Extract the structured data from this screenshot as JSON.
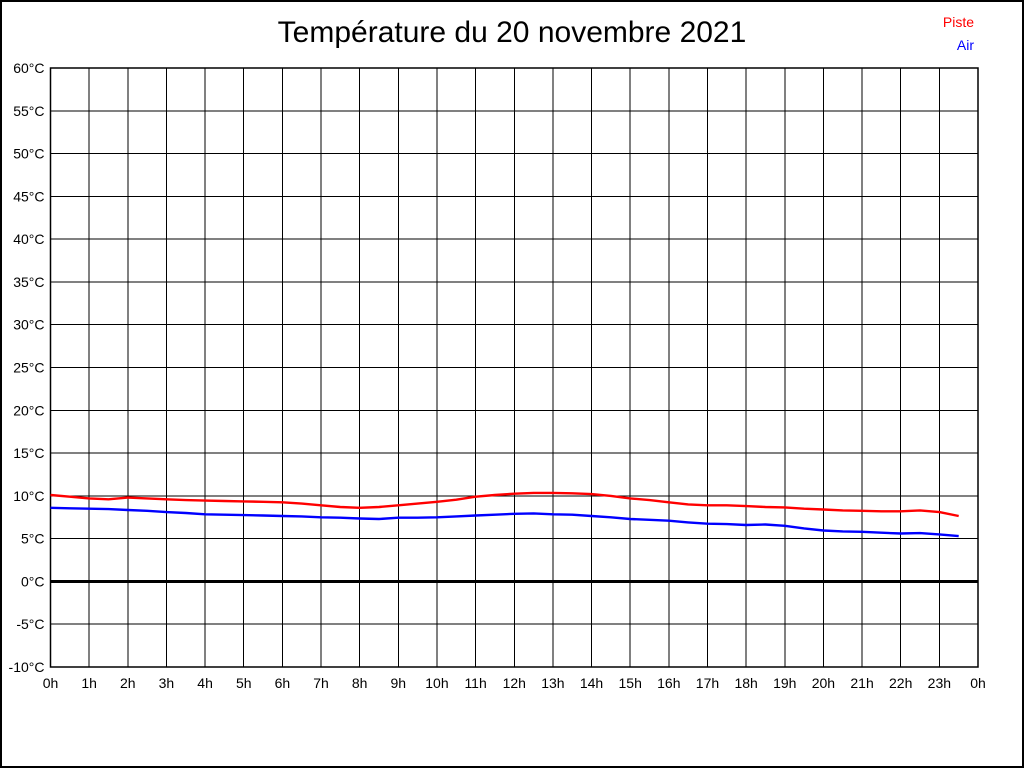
{
  "title": "Température du 20 novembre 2021",
  "legend": [
    {
      "label": "Piste",
      "color": "#ff0000"
    },
    {
      "label": "Air",
      "color": "#0000ff"
    }
  ],
  "colors": {
    "grid": "#000000",
    "background": "#ffffff",
    "piste_line": "#ff0000",
    "air_line": "#0000ff"
  },
  "chart_data": {
    "type": "line",
    "title": "Température du 20 novembre 2021",
    "xlabel": "",
    "ylabel": "",
    "xlim": [
      0,
      24
    ],
    "ylim": [
      -10,
      60
    ],
    "grid": true,
    "legend_position": "top-right",
    "x_ticks": [
      0,
      1,
      2,
      3,
      4,
      5,
      6,
      7,
      8,
      9,
      10,
      11,
      12,
      13,
      14,
      15,
      16,
      17,
      18,
      19,
      20,
      21,
      22,
      23,
      24
    ],
    "x_tick_labels": [
      "0h",
      "1h",
      "2h",
      "3h",
      "4h",
      "5h",
      "6h",
      "7h",
      "8h",
      "9h",
      "10h",
      "11h",
      "12h",
      "13h",
      "14h",
      "15h",
      "16h",
      "17h",
      "18h",
      "19h",
      "20h",
      "21h",
      "22h",
      "23h",
      "0h"
    ],
    "y_ticks": [
      60,
      55,
      50,
      45,
      40,
      35,
      30,
      25,
      20,
      15,
      10,
      5,
      0,
      -5,
      -10
    ],
    "y_tick_labels": [
      "60°C",
      "55°C",
      "50°C",
      "45°C",
      "40°C",
      "35°C",
      "30°C",
      "25°C",
      "20°C",
      "15°C",
      "10°C",
      "5°C",
      "0°C",
      "-5°C",
      "-10°C"
    ],
    "zero_line": {
      "value": 0,
      "color": "#000000",
      "width": 3
    },
    "x": [
      0,
      0.5,
      1,
      1.5,
      2,
      2.5,
      3,
      3.5,
      4,
      4.5,
      5,
      5.5,
      6,
      6.5,
      7,
      7.5,
      8,
      8.5,
      9,
      9.5,
      10,
      10.5,
      11,
      11.5,
      12,
      12.5,
      13,
      13.5,
      14,
      14.5,
      15,
      15.5,
      16,
      16.5,
      17,
      17.5,
      18,
      18.5,
      19,
      19.5,
      20,
      20.5,
      21,
      21.5,
      22,
      22.5,
      23,
      23.5
    ],
    "series": [
      {
        "name": "Piste",
        "color": "#ff0000",
        "values": [
          10.1,
          9.9,
          9.7,
          9.6,
          9.8,
          9.7,
          9.6,
          9.5,
          9.45,
          9.4,
          9.35,
          9.3,
          9.25,
          9.1,
          8.9,
          8.7,
          8.6,
          8.7,
          8.9,
          9.1,
          9.3,
          9.55,
          9.9,
          10.1,
          10.25,
          10.35,
          10.35,
          10.3,
          10.2,
          10.0,
          9.7,
          9.5,
          9.25,
          9.0,
          8.9,
          8.9,
          8.8,
          8.7,
          8.65,
          8.5,
          8.4,
          8.3,
          8.25,
          8.2,
          8.2,
          8.3,
          8.1,
          7.65
        ]
      },
      {
        "name": "Air",
        "color": "#0000ff",
        "values": [
          8.6,
          8.55,
          8.5,
          8.45,
          8.35,
          8.25,
          8.1,
          8.0,
          7.85,
          7.8,
          7.75,
          7.7,
          7.65,
          7.6,
          7.5,
          7.45,
          7.35,
          7.3,
          7.45,
          7.45,
          7.5,
          7.6,
          7.7,
          7.8,
          7.9,
          7.95,
          7.85,
          7.8,
          7.65,
          7.5,
          7.3,
          7.2,
          7.1,
          6.9,
          6.75,
          6.7,
          6.6,
          6.65,
          6.5,
          6.2,
          5.95,
          5.85,
          5.8,
          5.7,
          5.6,
          5.65,
          5.5,
          5.3
        ]
      }
    ]
  }
}
